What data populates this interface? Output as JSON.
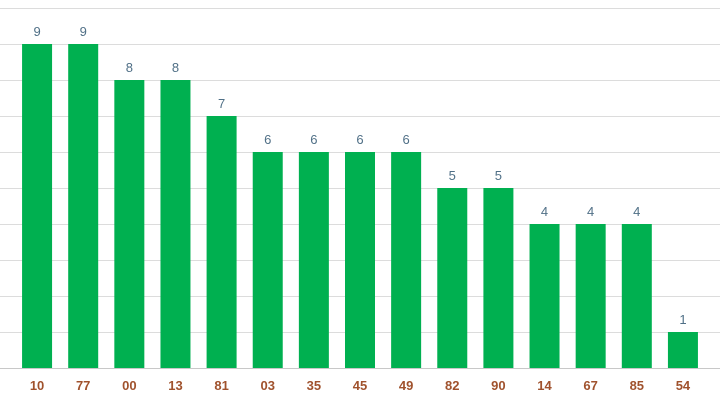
{
  "chart_data": {
    "type": "bar",
    "categories": [
      "10",
      "77",
      "00",
      "13",
      "81",
      "03",
      "35",
      "45",
      "49",
      "82",
      "90",
      "14",
      "67",
      "85",
      "54"
    ],
    "values": [
      9,
      9,
      8,
      8,
      7,
      6,
      6,
      6,
      6,
      5,
      5,
      4,
      4,
      4,
      1
    ],
    "title": "",
    "xlabel": "",
    "ylabel": "",
    "ylim": [
      0,
      10
    ],
    "grid": true,
    "legend": "none",
    "colors": {
      "bar": "#00b050",
      "value_label": "#4f6f86",
      "tick_label": "#a0522d",
      "grid": "#dcdcdc"
    }
  }
}
